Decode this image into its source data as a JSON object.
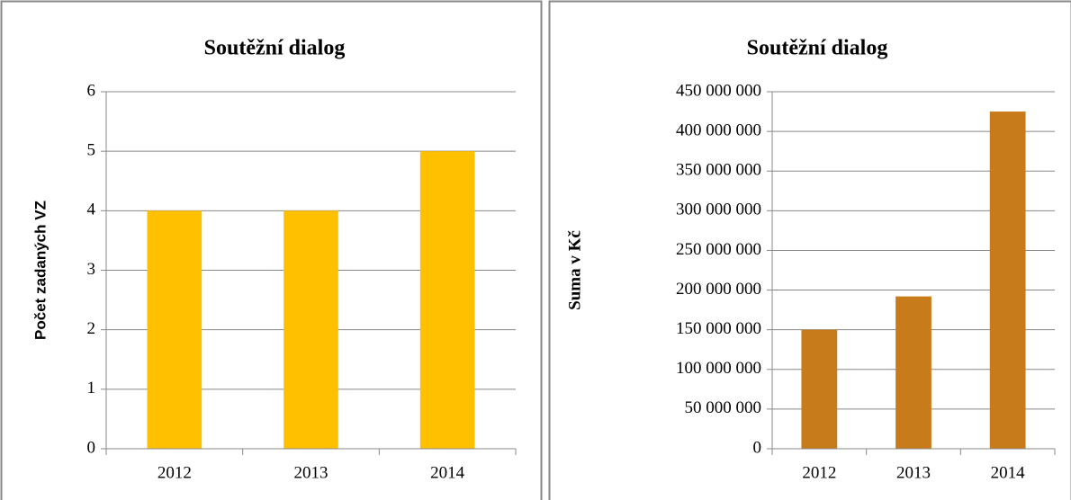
{
  "chart_data": [
    {
      "type": "bar",
      "title": "Soutěžní dialog",
      "ylabel": "Počet zadaných VZ",
      "categories": [
        "2012",
        "2013",
        "2014"
      ],
      "values": [
        4,
        4,
        5
      ],
      "color": "#ffc000",
      "ylim": [
        0,
        6
      ],
      "yticks": [
        0,
        1,
        2,
        3,
        4,
        5,
        6
      ],
      "grid": true
    },
    {
      "type": "bar",
      "title": "Soutěžní dialog",
      "ylabel": "Suma v Kč",
      "categories": [
        "2012",
        "2013",
        "2014"
      ],
      "values": [
        150000000,
        192000000,
        425000000
      ],
      "color": "#c87b1a",
      "ylim": [
        0,
        450000000
      ],
      "yticks": [
        0,
        {
          "value": 50000000,
          "label": "50 000 000"
        },
        {
          "value": 100000000,
          "label": "100 000 000"
        },
        {
          "value": 150000000,
          "label": "150 000 000"
        },
        {
          "value": 200000000,
          "label": "200 000 000"
        },
        {
          "value": 250000000,
          "label": "250 000 000"
        },
        {
          "value": 300000000,
          "label": "300 000 000"
        },
        {
          "value": 350000000,
          "label": "350 000 000"
        },
        {
          "value": 400000000,
          "label": "400 000 000"
        },
        {
          "value": 450000000,
          "label": "450 000 000"
        }
      ],
      "grid": true
    }
  ]
}
